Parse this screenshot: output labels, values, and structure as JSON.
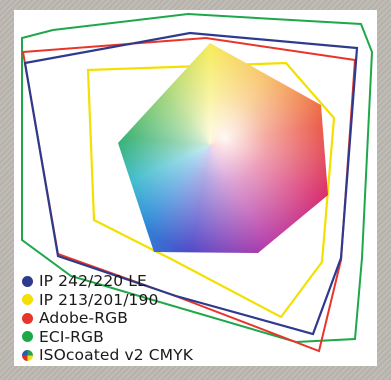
{
  "legend": {
    "items": [
      {
        "label": "IP 242/220 LE",
        "color": "#2e3a8c"
      },
      {
        "label": "IP 213/201/190",
        "color": "#f2e000"
      },
      {
        "label": "Adobe-RGB",
        "color": "#e8352a"
      },
      {
        "label": "ECI-RGB",
        "color": "#1ea84a"
      },
      {
        "label": "ISOcoated v2 CMYK",
        "color": "multicolor"
      }
    ]
  }
}
